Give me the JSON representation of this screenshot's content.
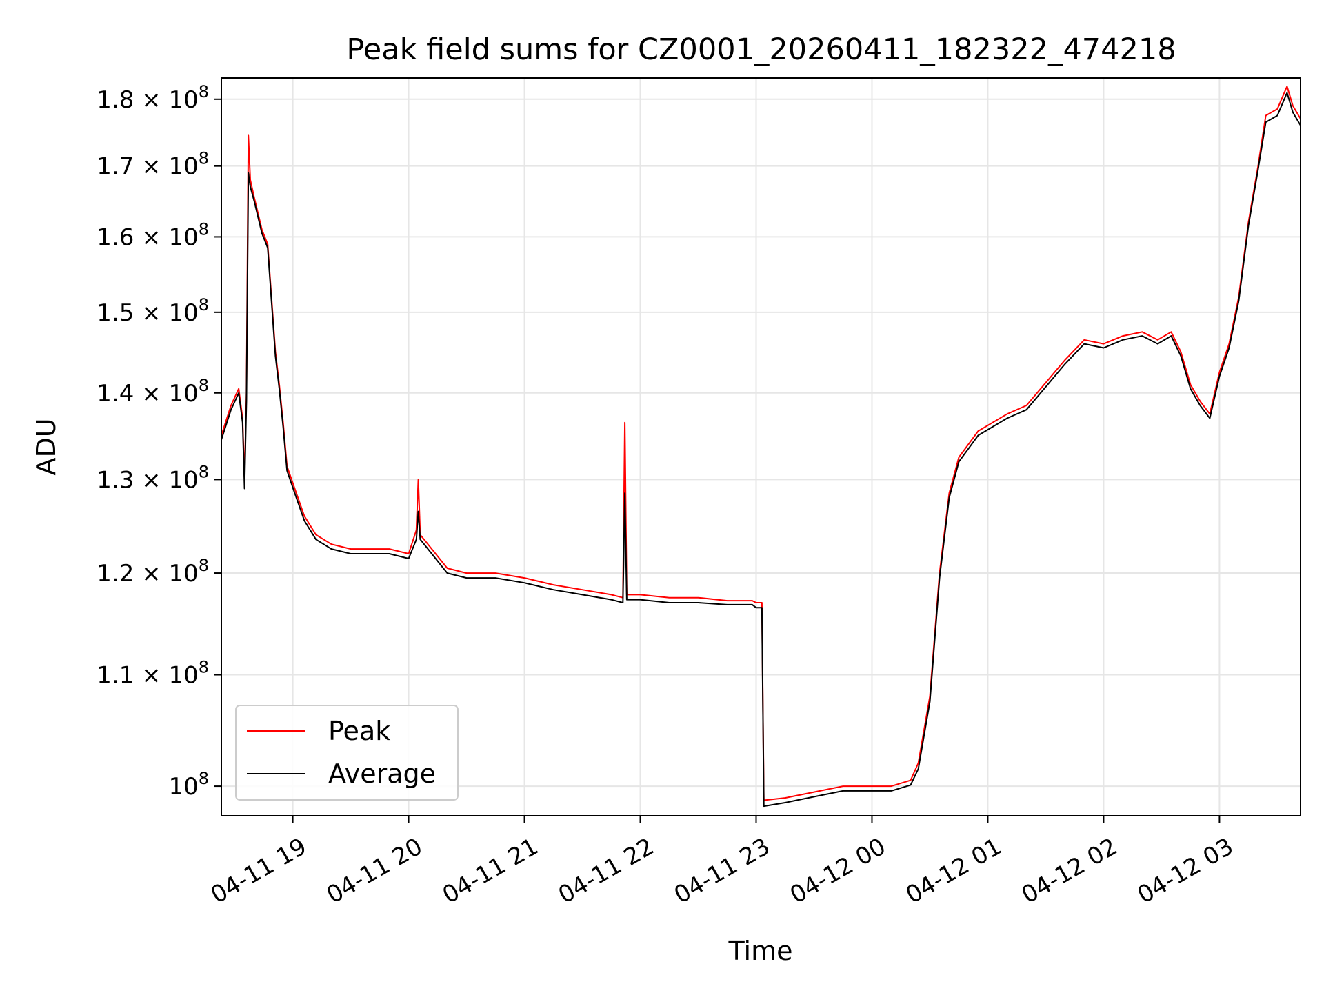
{
  "chart_data": {
    "type": "line",
    "title": "Peak field sums for CZ0001_20260411_182322_474218",
    "xlabel": "Time",
    "ylabel": "ADU",
    "y_scale": "log",
    "xlim": [
      "2026-04-11 18:23",
      "2026-04-12 03:42"
    ],
    "ylim": [
      97500000,
      183300000
    ],
    "grid": true,
    "legend_position": "lower-left",
    "x_ticks": [
      {
        "value": "2026-04-11 19:00",
        "label": "04-11 19"
      },
      {
        "value": "2026-04-11 20:00",
        "label": "04-11 20"
      },
      {
        "value": "2026-04-11 21:00",
        "label": "04-11 21"
      },
      {
        "value": "2026-04-11 22:00",
        "label": "04-11 22"
      },
      {
        "value": "2026-04-11 23:00",
        "label": "04-11 23"
      },
      {
        "value": "2026-04-12 00:00",
        "label": "04-12 00"
      },
      {
        "value": "2026-04-12 01:00",
        "label": "04-12 01"
      },
      {
        "value": "2026-04-12 02:00",
        "label": "04-12 02"
      },
      {
        "value": "2026-04-12 03:00",
        "label": "04-12 03"
      }
    ],
    "y_ticks": [
      {
        "value": 100000000,
        "mantissa": "",
        "exponent": "8"
      },
      {
        "value": 110000000,
        "mantissa": "1.1",
        "exponent": "8"
      },
      {
        "value": 120000000,
        "mantissa": "1.2",
        "exponent": "8"
      },
      {
        "value": 130000000,
        "mantissa": "1.3",
        "exponent": "8"
      },
      {
        "value": 140000000,
        "mantissa": "1.4",
        "exponent": "8"
      },
      {
        "value": 150000000,
        "mantissa": "1.5",
        "exponent": "8"
      },
      {
        "value": 160000000,
        "mantissa": "1.6",
        "exponent": "8"
      },
      {
        "value": 170000000,
        "mantissa": "1.7",
        "exponent": "8"
      },
      {
        "value": 180000000,
        "mantissa": "1.8",
        "exponent": "8"
      }
    ],
    "series": [
      {
        "name": "Peak",
        "color": "#ff0000",
        "points": [
          [
            "2026-04-11 18:23",
            135000000
          ],
          [
            "2026-04-11 18:28",
            138500000
          ],
          [
            "2026-04-11 18:32",
            140500000
          ],
          [
            "2026-04-11 18:34",
            137000000
          ],
          [
            "2026-04-11 18:35",
            130000000
          ],
          [
            "2026-04-11 18:36",
            140000000
          ],
          [
            "2026-04-11 18:37",
            174500000
          ],
          [
            "2026-04-11 18:38",
            168000000
          ],
          [
            "2026-04-11 18:40",
            165500000
          ],
          [
            "2026-04-11 18:44",
            161000000
          ],
          [
            "2026-04-11 18:47",
            159000000
          ],
          [
            "2026-04-11 18:51",
            145000000
          ],
          [
            "2026-04-11 18:53",
            141000000
          ],
          [
            "2026-04-11 18:55",
            136500000
          ],
          [
            "2026-04-11 18:57",
            131500000
          ],
          [
            "2026-04-11 19:01",
            129000000
          ],
          [
            "2026-04-11 19:06",
            126000000
          ],
          [
            "2026-04-11 19:12",
            124000000
          ],
          [
            "2026-04-11 19:20",
            123000000
          ],
          [
            "2026-04-11 19:30",
            122500000
          ],
          [
            "2026-04-11 19:40",
            122500000
          ],
          [
            "2026-04-11 19:50",
            122500000
          ],
          [
            "2026-04-11 20:00",
            122000000
          ],
          [
            "2026-04-11 20:04",
            124500000
          ],
          [
            "2026-04-11 20:05",
            130000000
          ],
          [
            "2026-04-11 20:06",
            124000000
          ],
          [
            "2026-04-11 20:10",
            123000000
          ],
          [
            "2026-04-11 20:20",
            120500000
          ],
          [
            "2026-04-11 20:30",
            120000000
          ],
          [
            "2026-04-11 20:45",
            120000000
          ],
          [
            "2026-04-11 21:00",
            119500000
          ],
          [
            "2026-04-11 21:15",
            118800000
          ],
          [
            "2026-04-11 21:30",
            118300000
          ],
          [
            "2026-04-11 21:45",
            117800000
          ],
          [
            "2026-04-11 21:51",
            117500000
          ],
          [
            "2026-04-11 21:52",
            136500000
          ],
          [
            "2026-04-11 21:53",
            117800000
          ],
          [
            "2026-04-11 22:00",
            117800000
          ],
          [
            "2026-04-11 22:15",
            117500000
          ],
          [
            "2026-04-11 22:30",
            117500000
          ],
          [
            "2026-04-11 22:45",
            117200000
          ],
          [
            "2026-04-11 22:58",
            117200000
          ],
          [
            "2026-04-11 23:00",
            117000000
          ],
          [
            "2026-04-11 23:03",
            117000000
          ],
          [
            "2026-04-11 23:04",
            98800000
          ],
          [
            "2026-04-11 23:15",
            99000000
          ],
          [
            "2026-04-11 23:30",
            99500000
          ],
          [
            "2026-04-11 23:45",
            100000000
          ],
          [
            "2026-04-11 23:58",
            100000000
          ],
          [
            "2026-04-12 00:10",
            100000000
          ],
          [
            "2026-04-12 00:20",
            100500000
          ],
          [
            "2026-04-12 00:24",
            102000000
          ],
          [
            "2026-04-12 00:30",
            108000000
          ],
          [
            "2026-04-12 00:35",
            120000000
          ],
          [
            "2026-04-12 00:40",
            128500000
          ],
          [
            "2026-04-12 00:45",
            132500000
          ],
          [
            "2026-04-12 00:55",
            135500000
          ],
          [
            "2026-04-12 01:10",
            137500000
          ],
          [
            "2026-04-12 01:20",
            138500000
          ],
          [
            "2026-04-12 01:40",
            144000000
          ],
          [
            "2026-04-12 01:50",
            146500000
          ],
          [
            "2026-04-12 02:00",
            146000000
          ],
          [
            "2026-04-12 02:10",
            147000000
          ],
          [
            "2026-04-12 02:20",
            147500000
          ],
          [
            "2026-04-12 02:28",
            146500000
          ],
          [
            "2026-04-12 02:35",
            147500000
          ],
          [
            "2026-04-12 02:40",
            145000000
          ],
          [
            "2026-04-12 02:45",
            141000000
          ],
          [
            "2026-04-12 02:50",
            139000000
          ],
          [
            "2026-04-12 02:55",
            137500000
          ],
          [
            "2026-04-12 03:00",
            142500000
          ],
          [
            "2026-04-12 03:05",
            146000000
          ],
          [
            "2026-04-12 03:10",
            152000000
          ],
          [
            "2026-04-12 03:15",
            162000000
          ],
          [
            "2026-04-12 03:20",
            170000000
          ],
          [
            "2026-04-12 03:24",
            177500000
          ],
          [
            "2026-04-12 03:30",
            178500000
          ],
          [
            "2026-04-12 03:35",
            182000000
          ],
          [
            "2026-04-12 03:38",
            179000000
          ],
          [
            "2026-04-12 03:42",
            177000000
          ]
        ]
      },
      {
        "name": "Average",
        "color": "#000000",
        "points": [
          [
            "2026-04-11 18:23",
            134500000
          ],
          [
            "2026-04-11 18:28",
            138000000
          ],
          [
            "2026-04-11 18:32",
            140000000
          ],
          [
            "2026-04-11 18:34",
            136500000
          ],
          [
            "2026-04-11 18:35",
            129000000
          ],
          [
            "2026-04-11 18:36",
            139000000
          ],
          [
            "2026-04-11 18:37",
            169000000
          ],
          [
            "2026-04-11 18:38",
            167000000
          ],
          [
            "2026-04-11 18:40",
            165000000
          ],
          [
            "2026-04-11 18:44",
            160500000
          ],
          [
            "2026-04-11 18:47",
            158500000
          ],
          [
            "2026-04-11 18:51",
            144500000
          ],
          [
            "2026-04-11 18:53",
            140500000
          ],
          [
            "2026-04-11 18:55",
            136000000
          ],
          [
            "2026-04-11 18:57",
            131000000
          ],
          [
            "2026-04-11 19:01",
            128500000
          ],
          [
            "2026-04-11 19:06",
            125500000
          ],
          [
            "2026-04-11 19:12",
            123500000
          ],
          [
            "2026-04-11 19:20",
            122500000
          ],
          [
            "2026-04-11 19:30",
            122000000
          ],
          [
            "2026-04-11 19:40",
            122000000
          ],
          [
            "2026-04-11 19:50",
            122000000
          ],
          [
            "2026-04-11 20:00",
            121500000
          ],
          [
            "2026-04-11 20:04",
            123500000
          ],
          [
            "2026-04-11 20:05",
            126500000
          ],
          [
            "2026-04-11 20:06",
            123500000
          ],
          [
            "2026-04-11 20:10",
            122500000
          ],
          [
            "2026-04-11 20:20",
            120000000
          ],
          [
            "2026-04-11 20:30",
            119500000
          ],
          [
            "2026-04-11 20:45",
            119500000
          ],
          [
            "2026-04-11 21:00",
            119000000
          ],
          [
            "2026-04-11 21:15",
            118300000
          ],
          [
            "2026-04-11 21:30",
            117800000
          ],
          [
            "2026-04-11 21:45",
            117300000
          ],
          [
            "2026-04-11 21:51",
            117000000
          ],
          [
            "2026-04-11 21:52",
            128500000
          ],
          [
            "2026-04-11 21:53",
            117300000
          ],
          [
            "2026-04-11 22:00",
            117300000
          ],
          [
            "2026-04-11 22:15",
            117000000
          ],
          [
            "2026-04-11 22:30",
            117000000
          ],
          [
            "2026-04-11 22:45",
            116800000
          ],
          [
            "2026-04-11 22:58",
            116800000
          ],
          [
            "2026-04-11 23:00",
            116500000
          ],
          [
            "2026-04-11 23:03",
            116500000
          ],
          [
            "2026-04-11 23:04",
            98300000
          ],
          [
            "2026-04-11 23:15",
            98600000
          ],
          [
            "2026-04-11 23:30",
            99100000
          ],
          [
            "2026-04-11 23:45",
            99600000
          ],
          [
            "2026-04-11 23:58",
            99600000
          ],
          [
            "2026-04-12 00:10",
            99600000
          ],
          [
            "2026-04-12 00:20",
            100100000
          ],
          [
            "2026-04-12 00:24",
            101500000
          ],
          [
            "2026-04-12 00:30",
            107500000
          ],
          [
            "2026-04-12 00:35",
            119500000
          ],
          [
            "2026-04-12 00:40",
            128000000
          ],
          [
            "2026-04-12 00:45",
            132000000
          ],
          [
            "2026-04-12 00:55",
            135000000
          ],
          [
            "2026-04-12 01:10",
            137000000
          ],
          [
            "2026-04-12 01:20",
            138000000
          ],
          [
            "2026-04-12 01:40",
            143500000
          ],
          [
            "2026-04-12 01:50",
            146000000
          ],
          [
            "2026-04-12 02:00",
            145500000
          ],
          [
            "2026-04-12 02:10",
            146500000
          ],
          [
            "2026-04-12 02:20",
            147000000
          ],
          [
            "2026-04-12 02:28",
            146000000
          ],
          [
            "2026-04-12 02:35",
            147000000
          ],
          [
            "2026-04-12 02:40",
            144500000
          ],
          [
            "2026-04-12 02:45",
            140500000
          ],
          [
            "2026-04-12 02:50",
            138500000
          ],
          [
            "2026-04-12 02:55",
            137000000
          ],
          [
            "2026-04-12 03:00",
            142000000
          ],
          [
            "2026-04-12 03:05",
            145500000
          ],
          [
            "2026-04-12 03:10",
            151500000
          ],
          [
            "2026-04-12 03:15",
            161500000
          ],
          [
            "2026-04-12 03:20",
            169500000
          ],
          [
            "2026-04-12 03:24",
            176500000
          ],
          [
            "2026-04-12 03:30",
            177500000
          ],
          [
            "2026-04-12 03:35",
            181000000
          ],
          [
            "2026-04-12 03:38",
            178000000
          ],
          [
            "2026-04-12 03:42",
            176000000
          ]
        ]
      }
    ]
  }
}
